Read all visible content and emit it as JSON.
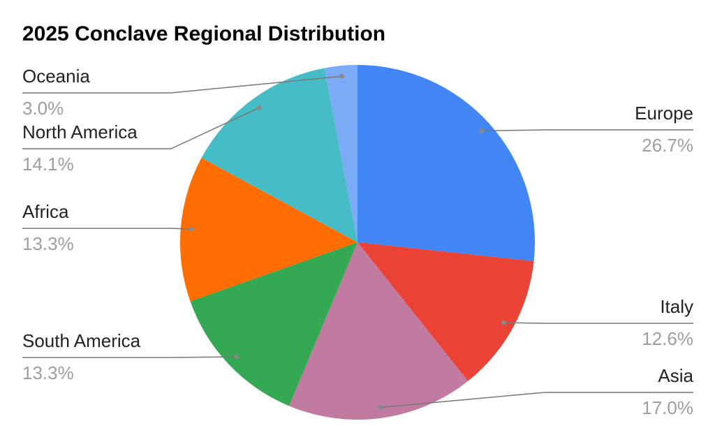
{
  "chart_data": {
    "type": "pie",
    "title": "2025 Conclave Regional Distribution",
    "categories": [
      "Europe",
      "Italy",
      "Asia",
      "South America",
      "Africa",
      "North America",
      "Oceania"
    ],
    "values": [
      26.7,
      12.6,
      17.0,
      13.3,
      13.3,
      14.1,
      3.0
    ],
    "value_labels": [
      "26.7%",
      "12.6%",
      "17.0%",
      "13.3%",
      "13.3%",
      "14.1%",
      "3.0%"
    ],
    "colors": [
      "#4285f4",
      "#ea4335",
      "#c27ba0",
      "#34a853",
      "#ff6d01",
      "#46bdc6",
      "#7baaf7"
    ]
  }
}
